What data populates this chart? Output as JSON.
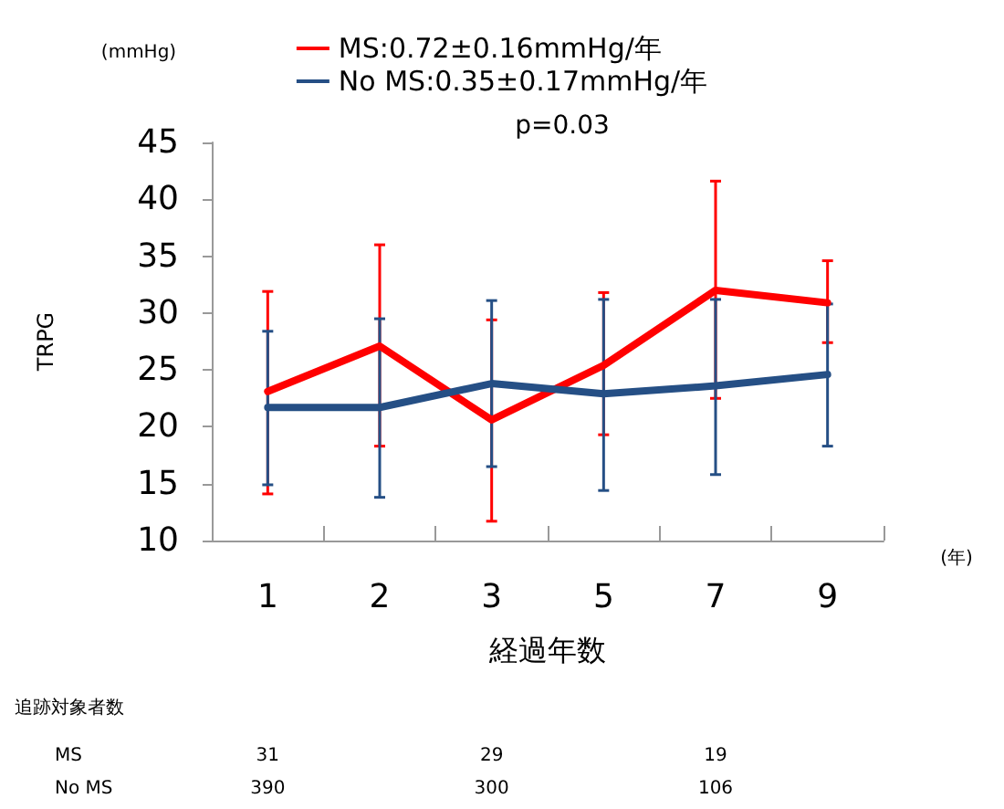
{
  "chart_data": {
    "type": "line",
    "xlabel": "経過年数",
    "ylabel": "TRPG",
    "categories": [
      "1",
      "2",
      "3",
      "5",
      "7",
      "9"
    ],
    "series": [
      {
        "name": "MS:0.72±0.16mmHg/年",
        "color": "#ff0000",
        "values": [
          23.1,
          27.1,
          20.6,
          25.4,
          32,
          30.9
        ],
        "errors": [
          [
            14.1,
            31.9
          ],
          [
            18.3,
            36
          ],
          [
            11.7,
            29.4
          ],
          [
            19.3,
            31.8
          ],
          [
            22.5,
            41.6
          ],
          [
            27.4,
            34.6
          ]
        ]
      },
      {
        "name": "No MS:0.35±0.17mmHg/年",
        "color": "#254f85",
        "values": [
          21.7,
          21.7,
          23.8,
          22.9,
          23.6,
          24.6
        ],
        "errors": [
          [
            14.9,
            28.4
          ],
          [
            13.8,
            29.5
          ],
          [
            16.5,
            31.1
          ],
          [
            14.4,
            31.2
          ],
          [
            15.8,
            31.2
          ],
          [
            18.3,
            30.8
          ]
        ]
      }
    ],
    "ylim": [
      10,
      45
    ],
    "yticks": [
      10,
      15,
      20,
      25,
      30,
      35,
      40,
      45
    ],
    "grid": false,
    "legend": "top",
    "marker": "none",
    "line_style": "solid",
    "annotations": [
      "p=0.03",
      "(mmHg)",
      "(年)",
      "追跡対象者数",
      "MS",
      "31",
      "29",
      "19",
      "No MS",
      "390",
      "300",
      "106"
    ]
  }
}
